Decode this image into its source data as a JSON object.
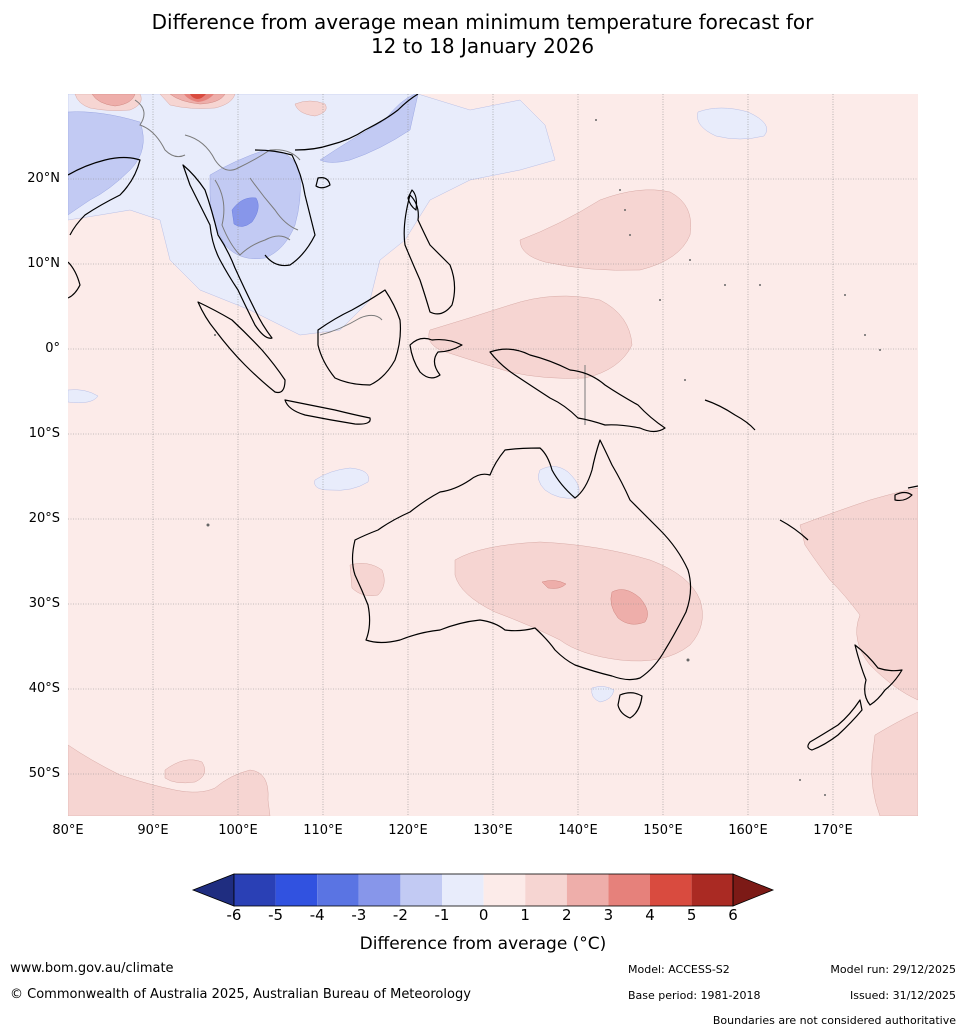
{
  "title": {
    "line1": "Difference from average mean minimum temperature forecast for",
    "line2": "12 to 18 January 2026"
  },
  "map": {
    "lat_labels": [
      "20°N",
      "10°N",
      "0°",
      "10°S",
      "20°S",
      "30°S",
      "40°S",
      "50°S"
    ],
    "lon_labels": [
      "80°E",
      "90°E",
      "100°E",
      "110°E",
      "120°E",
      "130°E",
      "140°E",
      "150°E",
      "160°E",
      "170°E"
    ],
    "colors": {
      "ocean_base": "#fcebe9",
      "warm_1_2": "#f6d5d2",
      "warm_2_3": "#eeaeaa",
      "warm_3_4": "#e6817b",
      "warm_4_5": "#d94b3f",
      "cool_0_1": "#e8ecfb",
      "cool_1_2": "#c2caf3",
      "cool_2_3": "#8796ea",
      "coast": "#000000",
      "boundary": "#7a7a7a",
      "grid": "#8e8e8e"
    }
  },
  "colorbar": {
    "labels": [
      "-6",
      "-5",
      "-4",
      "-3",
      "-2",
      "-1",
      "0",
      "1",
      "2",
      "3",
      "4",
      "5",
      "6"
    ],
    "colors": [
      "#1f2d80",
      "#2a40b5",
      "#3152e0",
      "#5a74e3",
      "#8796ea",
      "#c2caf3",
      "#e8ecfb",
      "#fcebe9",
      "#f6d5d2",
      "#eeaeaa",
      "#e6817b",
      "#d94b3f",
      "#aa2a23",
      "#7c1a16"
    ],
    "title": "Difference from average (°C)"
  },
  "footer": {
    "website": "www.bom.gov.au/climate",
    "copyright": "© Commonwealth of Australia 2025, Australian Bureau of Meteorology",
    "model": "Model: ACCESS-S2",
    "base_period": "Base period: 1981-2018",
    "model_run": "Model run: 29/12/2025",
    "issued": "Issued: 31/12/2025",
    "disclaimer": "Boundaries are not considered authoritative"
  }
}
